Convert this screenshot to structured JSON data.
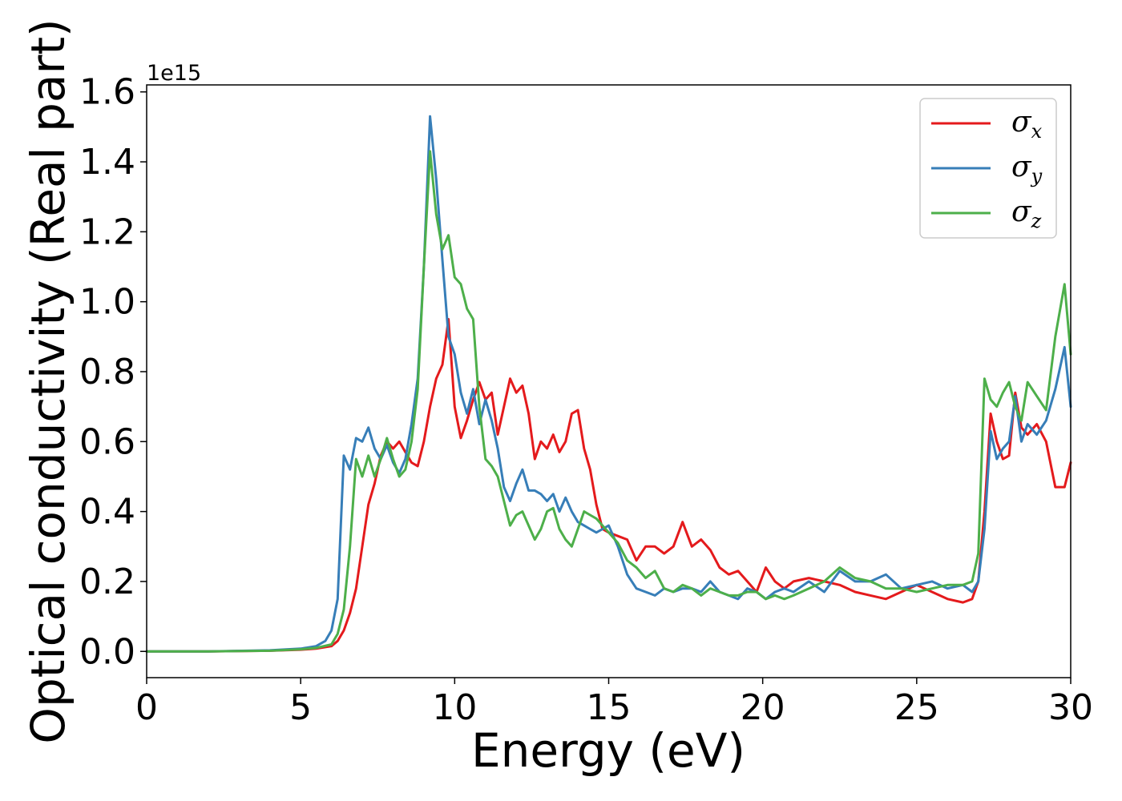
{
  "chart_data": {
    "type": "line",
    "xlabel": "Energy (eV)",
    "ylabel": "Optical conductivity (Real part)",
    "y_offset_label": "1e15",
    "xlim": [
      0,
      30
    ],
    "ylim": [
      -0.075,
      1.62
    ],
    "x_ticks": [
      0,
      5,
      10,
      15,
      20,
      25,
      30
    ],
    "y_ticks": [
      0.0,
      0.2,
      0.4,
      0.6,
      0.8,
      1.0,
      1.2,
      1.4,
      1.6
    ],
    "x_tick_labels": [
      "0",
      "5",
      "10",
      "15",
      "20",
      "25",
      "30"
    ],
    "y_tick_labels": [
      "0.0",
      "0.2",
      "0.4",
      "0.6",
      "0.8",
      "1.0",
      "1.2",
      "1.4",
      "1.6"
    ],
    "grid": false,
    "legend_position": "top-right",
    "series": [
      {
        "name": "σx",
        "symbol": "σ",
        "subscript": "x",
        "color": "#e41a1c",
        "x": [
          0,
          2,
          4,
          5,
          5.5,
          6,
          6.2,
          6.4,
          6.6,
          6.8,
          7.0,
          7.2,
          7.4,
          7.6,
          7.8,
          8.0,
          8.2,
          8.4,
          8.6,
          8.8,
          9.0,
          9.2,
          9.4,
          9.6,
          9.8,
          10.0,
          10.2,
          10.4,
          10.6,
          10.8,
          11.0,
          11.2,
          11.4,
          11.6,
          11.8,
          12.0,
          12.2,
          12.4,
          12.6,
          12.8,
          13.0,
          13.2,
          13.4,
          13.6,
          13.8,
          14.0,
          14.2,
          14.4,
          14.6,
          14.8,
          15.0,
          15.3,
          15.6,
          15.9,
          16.2,
          16.5,
          16.8,
          17.1,
          17.4,
          17.7,
          18.0,
          18.3,
          18.6,
          18.9,
          19.2,
          19.5,
          19.8,
          20.1,
          20.4,
          20.7,
          21.0,
          21.5,
          22.0,
          22.5,
          23.0,
          23.5,
          24.0,
          24.5,
          25.0,
          25.5,
          26.0,
          26.5,
          26.8,
          27.0,
          27.2,
          27.4,
          27.6,
          27.8,
          28.0,
          28.2,
          28.4,
          28.6,
          28.9,
          29.2,
          29.5,
          29.8,
          30.0
        ],
        "values": [
          0.0,
          0.0,
          0.002,
          0.005,
          0.008,
          0.015,
          0.03,
          0.06,
          0.11,
          0.18,
          0.3,
          0.42,
          0.48,
          0.56,
          0.6,
          0.58,
          0.6,
          0.57,
          0.54,
          0.53,
          0.6,
          0.7,
          0.78,
          0.82,
          0.95,
          0.7,
          0.61,
          0.66,
          0.72,
          0.77,
          0.72,
          0.74,
          0.62,
          0.7,
          0.78,
          0.74,
          0.76,
          0.68,
          0.55,
          0.6,
          0.58,
          0.62,
          0.57,
          0.6,
          0.68,
          0.69,
          0.58,
          0.52,
          0.42,
          0.35,
          0.34,
          0.33,
          0.32,
          0.26,
          0.3,
          0.3,
          0.28,
          0.3,
          0.37,
          0.3,
          0.32,
          0.29,
          0.24,
          0.22,
          0.23,
          0.2,
          0.17,
          0.24,
          0.2,
          0.18,
          0.2,
          0.21,
          0.2,
          0.19,
          0.17,
          0.16,
          0.15,
          0.17,
          0.19,
          0.17,
          0.15,
          0.14,
          0.15,
          0.2,
          0.4,
          0.68,
          0.6,
          0.55,
          0.56,
          0.74,
          0.64,
          0.62,
          0.65,
          0.6,
          0.47,
          0.47,
          0.54
        ]
      },
      {
        "name": "σy",
        "symbol": "σ",
        "subscript": "y",
        "color": "#377eb8",
        "x": [
          0,
          2,
          4,
          5,
          5.5,
          5.8,
          6.0,
          6.2,
          6.4,
          6.6,
          6.8,
          7.0,
          7.2,
          7.4,
          7.6,
          7.8,
          8.0,
          8.2,
          8.4,
          8.6,
          8.8,
          9.0,
          9.2,
          9.4,
          9.6,
          9.8,
          10.0,
          10.2,
          10.4,
          10.6,
          10.8,
          11.0,
          11.2,
          11.4,
          11.6,
          11.8,
          12.0,
          12.2,
          12.4,
          12.6,
          12.8,
          13.0,
          13.2,
          13.4,
          13.6,
          13.8,
          14.0,
          14.2,
          14.4,
          14.6,
          14.8,
          15.0,
          15.3,
          15.6,
          15.9,
          16.2,
          16.5,
          16.8,
          17.1,
          17.4,
          17.7,
          18.0,
          18.3,
          18.6,
          18.9,
          19.2,
          19.5,
          19.8,
          20.1,
          20.4,
          20.7,
          21.0,
          21.5,
          22.0,
          22.5,
          23.0,
          23.5,
          24.0,
          24.5,
          25.0,
          25.5,
          26.0,
          26.5,
          26.8,
          27.0,
          27.2,
          27.4,
          27.6,
          27.8,
          28.0,
          28.2,
          28.4,
          28.6,
          28.9,
          29.2,
          29.5,
          29.8,
          30.0
        ],
        "values": [
          0.0,
          0.0,
          0.003,
          0.008,
          0.015,
          0.03,
          0.06,
          0.15,
          0.56,
          0.52,
          0.61,
          0.6,
          0.64,
          0.58,
          0.55,
          0.59,
          0.54,
          0.51,
          0.55,
          0.65,
          0.78,
          1.1,
          1.53,
          1.35,
          1.12,
          0.9,
          0.85,
          0.74,
          0.68,
          0.75,
          0.65,
          0.72,
          0.66,
          0.58,
          0.47,
          0.43,
          0.48,
          0.52,
          0.46,
          0.46,
          0.45,
          0.43,
          0.45,
          0.4,
          0.44,
          0.4,
          0.37,
          0.36,
          0.35,
          0.34,
          0.35,
          0.36,
          0.3,
          0.22,
          0.18,
          0.17,
          0.16,
          0.18,
          0.17,
          0.18,
          0.18,
          0.17,
          0.2,
          0.17,
          0.16,
          0.15,
          0.18,
          0.17,
          0.15,
          0.17,
          0.18,
          0.17,
          0.2,
          0.17,
          0.23,
          0.2,
          0.2,
          0.22,
          0.18,
          0.19,
          0.2,
          0.18,
          0.19,
          0.17,
          0.2,
          0.35,
          0.63,
          0.55,
          0.58,
          0.6,
          0.73,
          0.6,
          0.65,
          0.62,
          0.66,
          0.75,
          0.87,
          0.7
        ]
      },
      {
        "name": "σz",
        "symbol": "σ",
        "subscript": "z",
        "color": "#4daf4a",
        "x": [
          0,
          2,
          4,
          5,
          5.5,
          6,
          6.2,
          6.4,
          6.6,
          6.8,
          7.0,
          7.2,
          7.4,
          7.6,
          7.8,
          8.0,
          8.2,
          8.4,
          8.6,
          8.8,
          9.0,
          9.2,
          9.4,
          9.6,
          9.8,
          10.0,
          10.2,
          10.4,
          10.6,
          10.8,
          11.0,
          11.2,
          11.4,
          11.6,
          11.8,
          12.0,
          12.2,
          12.4,
          12.6,
          12.8,
          13.0,
          13.2,
          13.4,
          13.6,
          13.8,
          14.0,
          14.2,
          14.4,
          14.6,
          14.8,
          15.0,
          15.3,
          15.6,
          15.9,
          16.2,
          16.5,
          16.8,
          17.1,
          17.4,
          17.7,
          18.0,
          18.3,
          18.6,
          18.9,
          19.2,
          19.5,
          19.8,
          20.1,
          20.4,
          20.7,
          21.0,
          21.5,
          22.0,
          22.5,
          23.0,
          23.5,
          24.0,
          24.5,
          25.0,
          25.5,
          26.0,
          26.5,
          26.8,
          27.0,
          27.2,
          27.4,
          27.6,
          27.8,
          28.0,
          28.2,
          28.4,
          28.6,
          28.9,
          29.2,
          29.5,
          29.8,
          30.0
        ],
        "values": [
          0.0,
          0.0,
          0.002,
          0.006,
          0.01,
          0.02,
          0.05,
          0.12,
          0.3,
          0.55,
          0.5,
          0.56,
          0.5,
          0.55,
          0.61,
          0.55,
          0.5,
          0.52,
          0.6,
          0.75,
          1.1,
          1.43,
          1.25,
          1.15,
          1.19,
          1.07,
          1.05,
          0.98,
          0.95,
          0.7,
          0.55,
          0.53,
          0.5,
          0.43,
          0.36,
          0.39,
          0.4,
          0.36,
          0.32,
          0.35,
          0.4,
          0.41,
          0.35,
          0.32,
          0.3,
          0.35,
          0.4,
          0.39,
          0.38,
          0.36,
          0.34,
          0.31,
          0.26,
          0.24,
          0.21,
          0.23,
          0.18,
          0.17,
          0.19,
          0.18,
          0.16,
          0.18,
          0.17,
          0.16,
          0.16,
          0.17,
          0.17,
          0.15,
          0.16,
          0.15,
          0.16,
          0.18,
          0.2,
          0.24,
          0.21,
          0.2,
          0.18,
          0.18,
          0.17,
          0.18,
          0.19,
          0.19,
          0.2,
          0.28,
          0.78,
          0.72,
          0.7,
          0.74,
          0.77,
          0.7,
          0.66,
          0.77,
          0.73,
          0.69,
          0.9,
          1.05,
          0.85
        ]
      }
    ]
  }
}
